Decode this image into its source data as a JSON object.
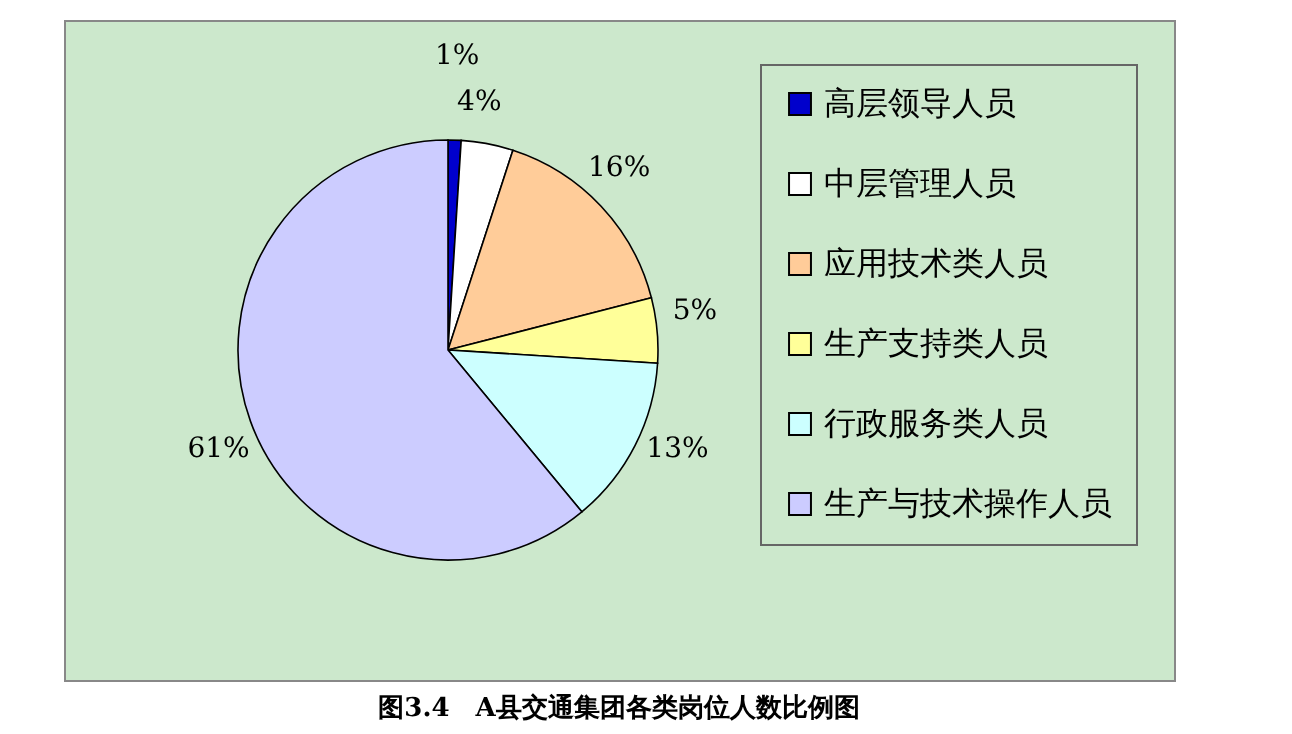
{
  "chart_data": {
    "type": "pie",
    "annotations": [
      "图3.4　A县交通集团各类岗位人数比例图"
    ],
    "categories": [
      "高层领导人员",
      "中层管理人员",
      "应用技术类人员",
      "生产支持类人员",
      "行政服务类人员",
      "生产与技术操作人员"
    ],
    "values": [
      1,
      4,
      16,
      5,
      13,
      61
    ],
    "value_labels": [
      "1%",
      "4%",
      "16%",
      "5%",
      "13%",
      "61%"
    ],
    "colors": [
      "#0000cc",
      "#ffffff",
      "#ffcc99",
      "#ffff99",
      "#ccffff",
      "#ccccff"
    ],
    "legend": "right"
  }
}
